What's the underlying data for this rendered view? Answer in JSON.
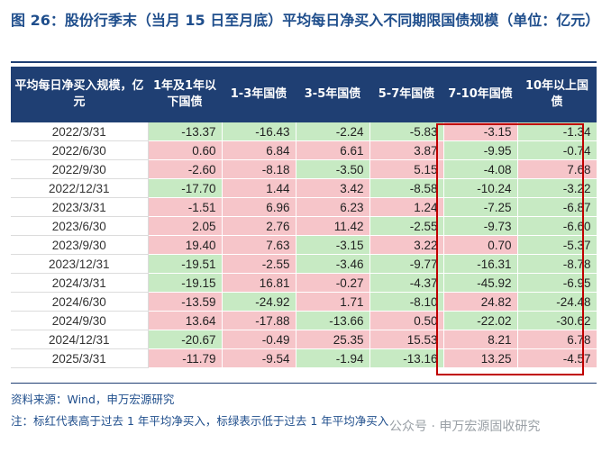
{
  "title": "图 26：股份行季末（当月 15 日至月底）平均每日净买入不同期限国债规模（单位：亿元）",
  "table": {
    "headers": [
      "平均每日净买入规模，亿元",
      "1年及1年以下国债",
      "1-3年国债",
      "3-5年国债",
      "5-7年国债",
      "7-10年国债",
      "10年以上国债"
    ],
    "rows": [
      {
        "date": "2022/3/31",
        "values": [
          "-13.37",
          "-16.43",
          "-2.24",
          "-5.83",
          "-3.15",
          "-1.34"
        ]
      },
      {
        "date": "2022/6/30",
        "values": [
          "0.60",
          "6.84",
          "6.61",
          "3.87",
          "-9.95",
          "-0.74"
        ]
      },
      {
        "date": "2022/9/30",
        "values": [
          "-2.60",
          "-8.18",
          "-3.50",
          "5.15",
          "-4.08",
          "7.68"
        ]
      },
      {
        "date": "2022/12/31",
        "values": [
          "-17.70",
          "1.44",
          "3.42",
          "-8.58",
          "-10.24",
          "-3.22"
        ]
      },
      {
        "date": "2023/3/31",
        "values": [
          "-1.51",
          "6.96",
          "6.23",
          "1.24",
          "-7.25",
          "-6.87"
        ]
      },
      {
        "date": "2023/6/30",
        "values": [
          "2.05",
          "2.76",
          "11.42",
          "-2.55",
          "-9.73",
          "-6.60"
        ]
      },
      {
        "date": "2023/9/30",
        "values": [
          "19.40",
          "7.63",
          "-3.15",
          "3.22",
          "0.70",
          "-5.37"
        ]
      },
      {
        "date": "2023/12/31",
        "values": [
          "-19.51",
          "-2.55",
          "-3.46",
          "-9.77",
          "-16.31",
          "-8.78"
        ]
      },
      {
        "date": "2024/3/31",
        "values": [
          "-19.15",
          "16.81",
          "-0.27",
          "-4.37",
          "-45.92",
          "-6.95"
        ]
      },
      {
        "date": "2024/6/30",
        "values": [
          "-13.59",
          "-24.92",
          "1.71",
          "-8.10",
          "24.82",
          "-24.48"
        ]
      },
      {
        "date": "2024/9/30",
        "values": [
          "13.64",
          "-17.88",
          "-13.66",
          "0.50",
          "-22.02",
          "-30.62"
        ]
      },
      {
        "date": "2024/12/31",
        "values": [
          "-20.67",
          "-0.49",
          "25.35",
          "15.53",
          "8.21",
          "6.78"
        ]
      },
      {
        "date": "2025/3/31",
        "values": [
          "-11.79",
          "-9.54",
          "-1.94",
          "-13.16",
          "13.25",
          "-4.57"
        ]
      }
    ],
    "cell_colors": [
      [
        "neg",
        "neg",
        "neg",
        "neg",
        "pos",
        "neg"
      ],
      [
        "pos",
        "pos",
        "pos",
        "pos",
        "neg",
        "neg"
      ],
      [
        "pos",
        "pos",
        "neg",
        "pos",
        "neg",
        "pos"
      ],
      [
        "neg",
        "pos",
        "pos",
        "neg",
        "neg",
        "neg"
      ],
      [
        "pos",
        "pos",
        "pos",
        "pos",
        "neg",
        "neg"
      ],
      [
        "pos",
        "pos",
        "pos",
        "neg",
        "neg",
        "neg"
      ],
      [
        "pos",
        "pos",
        "neg",
        "pos",
        "pos",
        "neg"
      ],
      [
        "neg",
        "pos",
        "neg",
        "neg",
        "neg",
        "neg"
      ],
      [
        "neg",
        "pos",
        "pos",
        "neg",
        "neg",
        "neg"
      ],
      [
        "pos",
        "neg",
        "pos",
        "neg",
        "pos",
        "neg"
      ],
      [
        "pos",
        "pos",
        "neg",
        "pos",
        "neg",
        "neg"
      ],
      [
        "neg",
        "pos",
        "pos",
        "pos",
        "pos",
        "pos"
      ],
      [
        "pos",
        "pos",
        "neg",
        "neg",
        "pos",
        "pos"
      ]
    ],
    "colors": {
      "pos": "#f6c5c9",
      "neg": "#c7eac3",
      "header": "#1f3f73",
      "highlight_box": "#c00000"
    }
  },
  "source": "资料来源：Wind，申万宏源研究",
  "footnote": "注：标红代表高于过去 1 年平均净买入，标绿表示低于过去 1 年平均净买入",
  "watermark": "公众号 · 申万宏源固收研究"
}
